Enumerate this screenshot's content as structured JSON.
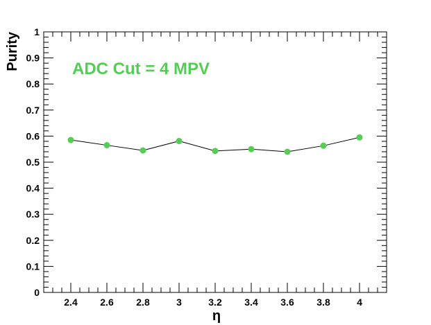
{
  "chart_data": {
    "type": "line",
    "xlabel": "η",
    "ylabel": "Purity",
    "xlim": [
      2.25,
      4.15
    ],
    "ylim": [
      0,
      1
    ],
    "x_ticks": [
      "2.4",
      "2.6",
      "2.8",
      "3",
      "3.2",
      "3.4",
      "3.6",
      "3.8",
      "4"
    ],
    "y_ticks": [
      "0",
      "0.1",
      "0.2",
      "0.3",
      "0.4",
      "0.5",
      "0.6",
      "0.7",
      "0.8",
      "0.9",
      "1"
    ],
    "annotation": "ADC Cut = 4 MPV",
    "grid": false,
    "series": [
      {
        "x": [
          2.4,
          2.6,
          2.8,
          3.0,
          3.2,
          3.4,
          3.6,
          3.8,
          4.0
        ],
        "y": [
          0.585,
          0.565,
          0.545,
          0.581,
          0.543,
          0.55,
          0.54,
          0.563,
          0.595
        ],
        "marker_color": "#55cc55",
        "line_color": "#000000"
      }
    ]
  }
}
